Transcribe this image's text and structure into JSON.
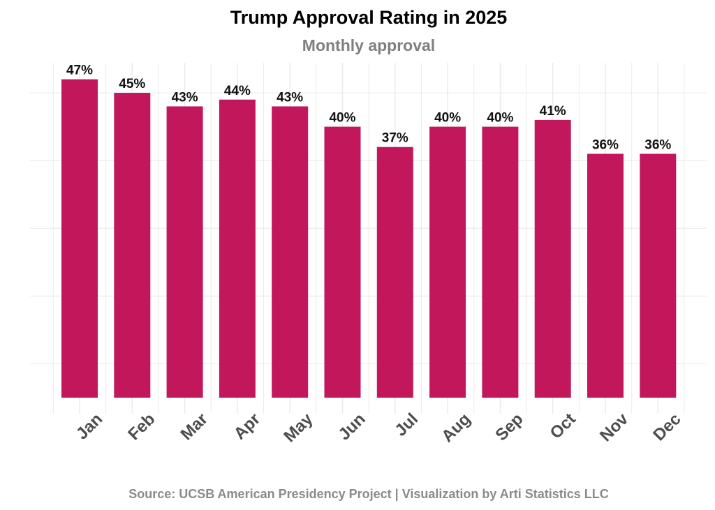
{
  "chart_data": {
    "type": "bar",
    "title": "Trump Approval Rating in 2025",
    "subtitle": "Monthly approval",
    "caption": "Source: UCSB American Presidency Project | Visualization by Arti Statistics LLC",
    "xlabel": "",
    "ylabel": "",
    "categories": [
      "Jan",
      "Feb",
      "Mar",
      "Apr",
      "May",
      "Jun",
      "Jul",
      "Aug",
      "Sep",
      "Oct",
      "Nov",
      "Dec"
    ],
    "values": [
      47,
      45,
      43,
      44,
      43,
      40,
      37,
      40,
      40,
      41,
      36,
      36
    ],
    "data_labels": [
      "47%",
      "45%",
      "43%",
      "44%",
      "43%",
      "40%",
      "37%",
      "40%",
      "40%",
      "41%",
      "36%",
      "36%"
    ],
    "ylim": [
      0,
      51.5
    ],
    "grid": true,
    "bar_color": "#C2185B"
  }
}
